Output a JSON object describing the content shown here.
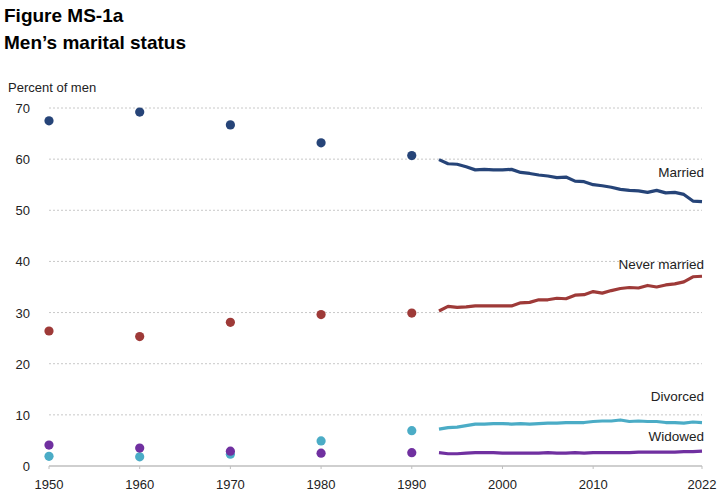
{
  "chart_data": {
    "type": "line",
    "title": "Figure MS-1a",
    "subtitle": "Men’s marital status",
    "y_label": "Percent of men",
    "x": [
      1950,
      1960,
      1970,
      1980,
      1990,
      1993,
      1994,
      1995,
      1996,
      1997,
      1998,
      1999,
      2000,
      2001,
      2002,
      2003,
      2004,
      2005,
      2006,
      2007,
      2008,
      2009,
      2010,
      2011,
      2012,
      2013,
      2014,
      2015,
      2016,
      2017,
      2018,
      2019,
      2020,
      2021,
      2022
    ],
    "xlim": [
      1950,
      2022
    ],
    "xticks": [
      1950,
      1960,
      1970,
      1980,
      1990,
      2000,
      2010,
      2022
    ],
    "ylim": [
      0,
      70
    ],
    "yticks": [
      0,
      10,
      20,
      30,
      40,
      50,
      60,
      70
    ],
    "grid": true,
    "series": [
      {
        "name": "Married",
        "type": "line",
        "line_style": "solid",
        "color": "#264478",
        "values": [
          null,
          null,
          null,
          null,
          null,
          59.9,
          59.1,
          59.0,
          58.5,
          57.9,
          58.0,
          57.9,
          57.9,
          58.0,
          57.4,
          57.2,
          56.9,
          56.7,
          56.4,
          56.5,
          55.7,
          55.6,
          55.0,
          54.8,
          54.5,
          54.1,
          53.9,
          53.8,
          53.5,
          53.9,
          53.4,
          53.5,
          53.1,
          51.8,
          51.7
        ]
      },
      {
        "name": "Never married",
        "type": "line",
        "line_style": "solid",
        "color": "#9e3a38",
        "values": [
          null,
          null,
          null,
          null,
          null,
          30.3,
          31.2,
          31.0,
          31.1,
          31.3,
          31.3,
          31.3,
          31.3,
          31.3,
          31.9,
          32.0,
          32.5,
          32.5,
          32.8,
          32.7,
          33.4,
          33.5,
          34.1,
          33.8,
          34.3,
          34.7,
          34.9,
          34.8,
          35.3,
          35.0,
          35.4,
          35.6,
          36.0,
          37.0,
          37.1
        ]
      },
      {
        "name": "Divorced",
        "type": "line",
        "line_style": "solid",
        "color": "#4bacc6",
        "values": [
          null,
          null,
          null,
          null,
          null,
          7.2,
          7.5,
          7.6,
          7.9,
          8.2,
          8.2,
          8.3,
          8.3,
          8.2,
          8.3,
          8.2,
          8.3,
          8.4,
          8.4,
          8.5,
          8.5,
          8.5,
          8.7,
          8.8,
          8.8,
          9.0,
          8.7,
          8.8,
          8.7,
          8.7,
          8.5,
          8.5,
          8.4,
          8.6,
          8.5
        ]
      },
      {
        "name": "Widowed",
        "type": "line",
        "line_style": "solid",
        "color": "#7030a0",
        "values": [
          null,
          null,
          null,
          null,
          null,
          2.6,
          2.4,
          2.4,
          2.5,
          2.6,
          2.6,
          2.6,
          2.5,
          2.5,
          2.5,
          2.5,
          2.5,
          2.6,
          2.5,
          2.5,
          2.6,
          2.5,
          2.6,
          2.6,
          2.6,
          2.6,
          2.6,
          2.7,
          2.7,
          2.7,
          2.7,
          2.7,
          2.8,
          2.8,
          2.9
        ]
      },
      {
        "type": "scatter",
        "marker": "circle",
        "color": "#264478",
        "values": [
          67.5,
          69.2,
          66.7,
          63.2,
          60.7,
          null,
          null,
          null,
          null,
          null,
          null,
          null,
          null,
          null,
          null,
          null,
          null,
          null,
          null,
          null,
          null,
          null,
          null,
          null,
          null,
          null,
          null,
          null,
          null,
          null,
          null,
          null,
          null,
          null,
          null
        ]
      },
      {
        "type": "scatter",
        "marker": "circle",
        "color": "#9e3a38",
        "values": [
          26.4,
          25.3,
          28.1,
          29.6,
          29.9,
          null,
          null,
          null,
          null,
          null,
          null,
          null,
          null,
          null,
          null,
          null,
          null,
          null,
          null,
          null,
          null,
          null,
          null,
          null,
          null,
          null,
          null,
          null,
          null,
          null,
          null,
          null,
          null,
          null,
          null
        ]
      },
      {
        "type": "scatter",
        "marker": "circle",
        "color": "#4bacc6",
        "values": [
          1.9,
          1.8,
          2.3,
          4.9,
          6.9,
          null,
          null,
          null,
          null,
          null,
          null,
          null,
          null,
          null,
          null,
          null,
          null,
          null,
          null,
          null,
          null,
          null,
          null,
          null,
          null,
          null,
          null,
          null,
          null,
          null,
          null,
          null,
          null,
          null,
          null
        ]
      },
      {
        "type": "scatter",
        "marker": "circle",
        "color": "#7030a0",
        "values": [
          4.1,
          3.5,
          2.9,
          2.5,
          2.6,
          null,
          null,
          null,
          null,
          null,
          null,
          null,
          null,
          null,
          null,
          null,
          null,
          null,
          null,
          null,
          null,
          null,
          null,
          null,
          null,
          null,
          null,
          null,
          null,
          null,
          null,
          null,
          null,
          null,
          null
        ]
      }
    ]
  }
}
